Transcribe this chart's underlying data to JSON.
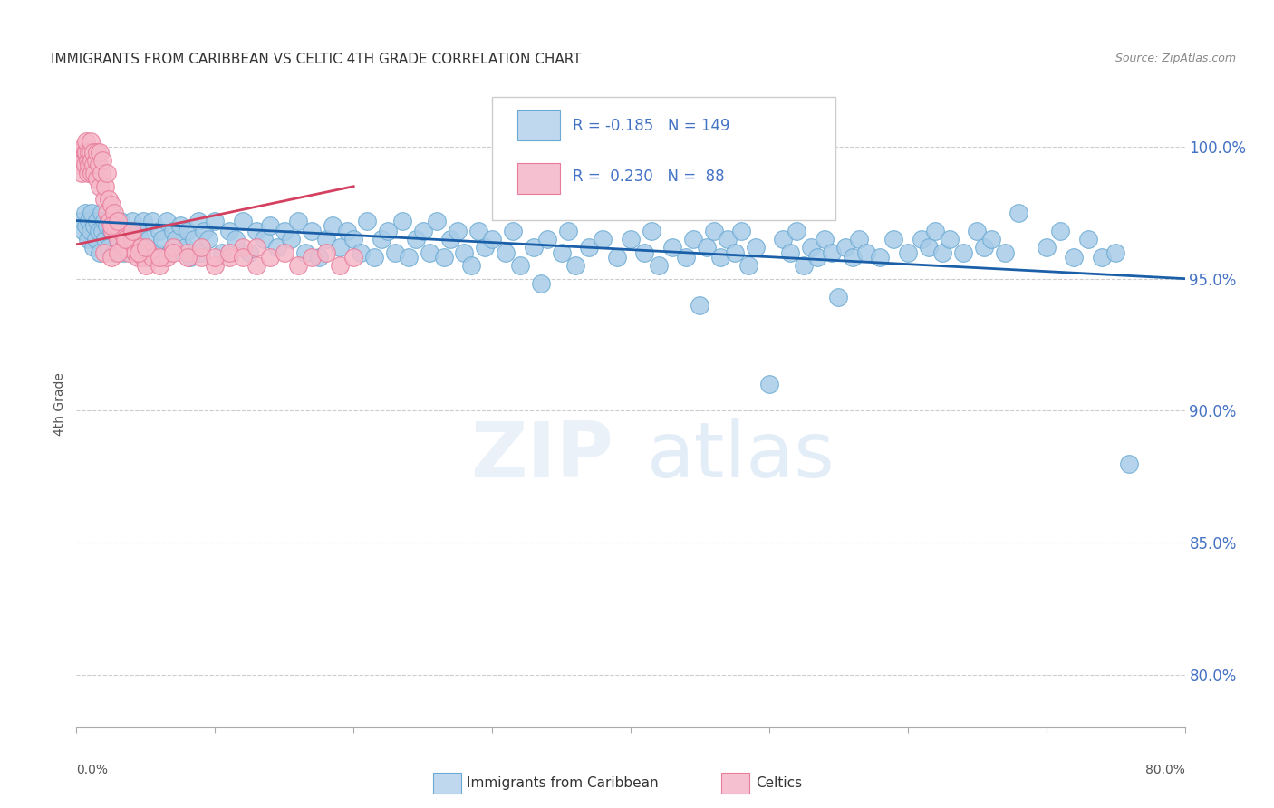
{
  "title": "IMMIGRANTS FROM CARIBBEAN VS CELTIC 4TH GRADE CORRELATION CHART",
  "source": "Source: ZipAtlas.com",
  "ylabel": "4th Grade",
  "y_ticks": [
    "80.0%",
    "85.0%",
    "90.0%",
    "95.0%",
    "100.0%"
  ],
  "y_tick_vals": [
    0.8,
    0.85,
    0.9,
    0.95,
    1.0
  ],
  "x_lim": [
    0.0,
    0.8
  ],
  "y_lim": [
    0.78,
    1.025
  ],
  "blue_color": "#a8cce8",
  "blue_edge": "#6aaad4",
  "pink_color": "#f5b8c8",
  "pink_edge": "#e87a9a",
  "trend_blue": "#1a5fa8",
  "trend_pink": "#d44060",
  "R_blue": -0.185,
  "N_blue": 149,
  "R_pink": 0.23,
  "N_pink": 88,
  "blue_points": [
    [
      0.003,
      0.972
    ],
    [
      0.005,
      0.968
    ],
    [
      0.006,
      0.975
    ],
    [
      0.007,
      0.97
    ],
    [
      0.008,
      0.965
    ],
    [
      0.009,
      0.972
    ],
    [
      0.01,
      0.968
    ],
    [
      0.011,
      0.975
    ],
    [
      0.012,
      0.962
    ],
    [
      0.013,
      0.97
    ],
    [
      0.014,
      0.965
    ],
    [
      0.015,
      0.972
    ],
    [
      0.016,
      0.968
    ],
    [
      0.017,
      0.96
    ],
    [
      0.018,
      0.975
    ],
    [
      0.019,
      0.968
    ],
    [
      0.02,
      0.972
    ],
    [
      0.021,
      0.965
    ],
    [
      0.022,
      0.97
    ],
    [
      0.023,
      0.962
    ],
    [
      0.025,
      0.968
    ],
    [
      0.026,
      0.975
    ],
    [
      0.027,
      0.96
    ],
    [
      0.028,
      0.968
    ],
    [
      0.03,
      0.965
    ],
    [
      0.032,
      0.972
    ],
    [
      0.034,
      0.96
    ],
    [
      0.036,
      0.968
    ],
    [
      0.038,
      0.965
    ],
    [
      0.04,
      0.972
    ],
    [
      0.042,
      0.96
    ],
    [
      0.044,
      0.968
    ],
    [
      0.046,
      0.965
    ],
    [
      0.048,
      0.972
    ],
    [
      0.05,
      0.958
    ],
    [
      0.052,
      0.965
    ],
    [
      0.055,
      0.972
    ],
    [
      0.058,
      0.96
    ],
    [
      0.06,
      0.968
    ],
    [
      0.062,
      0.965
    ],
    [
      0.065,
      0.972
    ],
    [
      0.068,
      0.96
    ],
    [
      0.07,
      0.968
    ],
    [
      0.072,
      0.965
    ],
    [
      0.075,
      0.97
    ],
    [
      0.078,
      0.962
    ],
    [
      0.08,
      0.968
    ],
    [
      0.082,
      0.958
    ],
    [
      0.085,
      0.965
    ],
    [
      0.088,
      0.972
    ],
    [
      0.09,
      0.96
    ],
    [
      0.092,
      0.968
    ],
    [
      0.095,
      0.965
    ],
    [
      0.1,
      0.972
    ],
    [
      0.105,
      0.96
    ],
    [
      0.11,
      0.968
    ],
    [
      0.115,
      0.965
    ],
    [
      0.12,
      0.972
    ],
    [
      0.125,
      0.96
    ],
    [
      0.13,
      0.968
    ],
    [
      0.135,
      0.965
    ],
    [
      0.14,
      0.97
    ],
    [
      0.145,
      0.962
    ],
    [
      0.15,
      0.968
    ],
    [
      0.155,
      0.965
    ],
    [
      0.16,
      0.972
    ],
    [
      0.165,
      0.96
    ],
    [
      0.17,
      0.968
    ],
    [
      0.175,
      0.958
    ],
    [
      0.18,
      0.965
    ],
    [
      0.185,
      0.97
    ],
    [
      0.19,
      0.962
    ],
    [
      0.195,
      0.968
    ],
    [
      0.2,
      0.965
    ],
    [
      0.205,
      0.96
    ],
    [
      0.21,
      0.972
    ],
    [
      0.215,
      0.958
    ],
    [
      0.22,
      0.965
    ],
    [
      0.225,
      0.968
    ],
    [
      0.23,
      0.96
    ],
    [
      0.235,
      0.972
    ],
    [
      0.24,
      0.958
    ],
    [
      0.245,
      0.965
    ],
    [
      0.25,
      0.968
    ],
    [
      0.255,
      0.96
    ],
    [
      0.26,
      0.972
    ],
    [
      0.265,
      0.958
    ],
    [
      0.27,
      0.965
    ],
    [
      0.275,
      0.968
    ],
    [
      0.28,
      0.96
    ],
    [
      0.285,
      0.955
    ],
    [
      0.29,
      0.968
    ],
    [
      0.295,
      0.962
    ],
    [
      0.3,
      0.965
    ],
    [
      0.31,
      0.96
    ],
    [
      0.315,
      0.968
    ],
    [
      0.32,
      0.955
    ],
    [
      0.33,
      0.962
    ],
    [
      0.335,
      0.948
    ],
    [
      0.34,
      0.965
    ],
    [
      0.35,
      0.96
    ],
    [
      0.355,
      0.968
    ],
    [
      0.36,
      0.955
    ],
    [
      0.37,
      0.962
    ],
    [
      0.38,
      0.965
    ],
    [
      0.39,
      0.958
    ],
    [
      0.4,
      0.965
    ],
    [
      0.41,
      0.96
    ],
    [
      0.415,
      0.968
    ],
    [
      0.42,
      0.955
    ],
    [
      0.43,
      0.962
    ],
    [
      0.44,
      0.958
    ],
    [
      0.445,
      0.965
    ],
    [
      0.45,
      0.94
    ],
    [
      0.455,
      0.962
    ],
    [
      0.46,
      0.968
    ],
    [
      0.465,
      0.958
    ],
    [
      0.47,
      0.965
    ],
    [
      0.475,
      0.96
    ],
    [
      0.48,
      0.968
    ],
    [
      0.485,
      0.955
    ],
    [
      0.49,
      0.962
    ],
    [
      0.5,
      0.91
    ],
    [
      0.51,
      0.965
    ],
    [
      0.515,
      0.96
    ],
    [
      0.52,
      0.968
    ],
    [
      0.525,
      0.955
    ],
    [
      0.53,
      0.962
    ],
    [
      0.535,
      0.958
    ],
    [
      0.54,
      0.965
    ],
    [
      0.545,
      0.96
    ],
    [
      0.55,
      0.943
    ],
    [
      0.555,
      0.962
    ],
    [
      0.56,
      0.958
    ],
    [
      0.565,
      0.965
    ],
    [
      0.57,
      0.96
    ],
    [
      0.58,
      0.958
    ],
    [
      0.59,
      0.965
    ],
    [
      0.6,
      0.96
    ],
    [
      0.61,
      0.965
    ],
    [
      0.615,
      0.962
    ],
    [
      0.62,
      0.968
    ],
    [
      0.625,
      0.96
    ],
    [
      0.63,
      0.965
    ],
    [
      0.64,
      0.96
    ],
    [
      0.65,
      0.968
    ],
    [
      0.655,
      0.962
    ],
    [
      0.66,
      0.965
    ],
    [
      0.67,
      0.96
    ],
    [
      0.68,
      0.975
    ],
    [
      0.7,
      0.962
    ],
    [
      0.71,
      0.968
    ],
    [
      0.72,
      0.958
    ],
    [
      0.73,
      0.965
    ],
    [
      0.74,
      0.958
    ],
    [
      0.75,
      0.96
    ],
    [
      0.76,
      0.88
    ]
  ],
  "pink_points": [
    [
      0.001,
      0.995
    ],
    [
      0.002,
      0.998
    ],
    [
      0.003,
      0.993
    ],
    [
      0.004,
      0.998
    ],
    [
      0.004,
      0.99
    ],
    [
      0.005,
      0.995
    ],
    [
      0.005,
      1.0
    ],
    [
      0.006,
      0.998
    ],
    [
      0.006,
      0.993
    ],
    [
      0.007,
      0.998
    ],
    [
      0.007,
      1.002
    ],
    [
      0.008,
      0.995
    ],
    [
      0.008,
      0.99
    ],
    [
      0.009,
      0.998
    ],
    [
      0.009,
      0.993
    ],
    [
      0.01,
      0.998
    ],
    [
      0.01,
      1.002
    ],
    [
      0.011,
      0.995
    ],
    [
      0.011,
      0.99
    ],
    [
      0.012,
      0.998
    ],
    [
      0.012,
      0.993
    ],
    [
      0.013,
      0.99
    ],
    [
      0.014,
      0.995
    ],
    [
      0.015,
      0.998
    ],
    [
      0.015,
      0.988
    ],
    [
      0.016,
      0.993
    ],
    [
      0.017,
      0.998
    ],
    [
      0.017,
      0.985
    ],
    [
      0.018,
      0.99
    ],
    [
      0.019,
      0.995
    ],
    [
      0.02,
      0.98
    ],
    [
      0.021,
      0.985
    ],
    [
      0.022,
      0.99
    ],
    [
      0.022,
      0.975
    ],
    [
      0.023,
      0.98
    ],
    [
      0.024,
      0.972
    ],
    [
      0.025,
      0.978
    ],
    [
      0.026,
      0.968
    ],
    [
      0.027,
      0.975
    ],
    [
      0.028,
      0.97
    ],
    [
      0.03,
      0.965
    ],
    [
      0.032,
      0.968
    ],
    [
      0.034,
      0.962
    ],
    [
      0.036,
      0.965
    ],
    [
      0.038,
      0.96
    ],
    [
      0.04,
      0.965
    ],
    [
      0.042,
      0.96
    ],
    [
      0.044,
      0.958
    ],
    [
      0.046,
      0.962
    ],
    [
      0.048,
      0.958
    ],
    [
      0.05,
      0.955
    ],
    [
      0.052,
      0.96
    ],
    [
      0.055,
      0.958
    ],
    [
      0.06,
      0.955
    ],
    [
      0.065,
      0.958
    ],
    [
      0.07,
      0.962
    ],
    [
      0.08,
      0.96
    ],
    [
      0.09,
      0.958
    ],
    [
      0.1,
      0.955
    ],
    [
      0.11,
      0.958
    ],
    [
      0.12,
      0.962
    ],
    [
      0.13,
      0.955
    ],
    [
      0.02,
      0.96
    ],
    [
      0.025,
      0.958
    ],
    [
      0.03,
      0.96
    ],
    [
      0.035,
      0.965
    ],
    [
      0.025,
      0.97
    ],
    [
      0.03,
      0.972
    ],
    [
      0.04,
      0.968
    ],
    [
      0.045,
      0.96
    ],
    [
      0.05,
      0.962
    ],
    [
      0.06,
      0.958
    ],
    [
      0.07,
      0.96
    ],
    [
      0.08,
      0.958
    ],
    [
      0.09,
      0.962
    ],
    [
      0.1,
      0.958
    ],
    [
      0.11,
      0.96
    ],
    [
      0.12,
      0.958
    ],
    [
      0.13,
      0.962
    ],
    [
      0.14,
      0.958
    ],
    [
      0.15,
      0.96
    ],
    [
      0.16,
      0.955
    ],
    [
      0.17,
      0.958
    ],
    [
      0.18,
      0.96
    ],
    [
      0.19,
      0.955
    ],
    [
      0.2,
      0.958
    ]
  ],
  "blue_trend_x": [
    0.0,
    0.8
  ],
  "blue_trend_y": [
    0.972,
    0.95
  ],
  "pink_trend_x": [
    0.0,
    0.2
  ],
  "pink_trend_y": [
    0.963,
    0.985
  ]
}
